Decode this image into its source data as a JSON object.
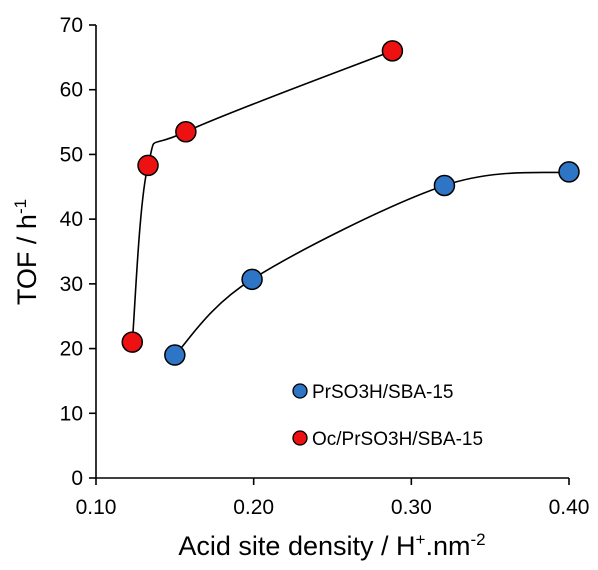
{
  "chart_data": {
    "type": "scatter",
    "xlabel": {
      "main": "Acid site density / H",
      "sup1": "+",
      "mid": ".nm",
      "sup2": "-2"
    },
    "ylabel": {
      "main": "TOF / h",
      "sup": "-1"
    },
    "xlim": [
      0.1,
      0.4
    ],
    "ylim": [
      0,
      70
    ],
    "xticks": [
      0.1,
      0.2,
      0.3,
      0.4
    ],
    "xtick_labels": [
      "0.10",
      "0.20",
      "0.30",
      "0.40"
    ],
    "yticks": [
      0,
      10,
      20,
      30,
      40,
      50,
      60,
      70
    ],
    "ytick_labels": [
      "0",
      "10",
      "20",
      "30",
      "40",
      "50",
      "60",
      "70"
    ],
    "grid": false,
    "legend_position": "bottom-right",
    "series": [
      {
        "name": "PrSO3H/SBA-15",
        "color": "#2E75C5",
        "trendline": "smooth curve",
        "points": [
          {
            "x": 0.15,
            "y": 19.0
          },
          {
            "x": 0.199,
            "y": 30.7
          },
          {
            "x": 0.321,
            "y": 45.2
          },
          {
            "x": 0.4,
            "y": 47.3
          }
        ]
      },
      {
        "name": "Oc/PrSO3H/SBA-15",
        "color": "#EE1111",
        "trendline": "smooth curve",
        "points": [
          {
            "x": 0.123,
            "y": 21.0
          },
          {
            "x": 0.133,
            "y": 48.3
          },
          {
            "x": 0.157,
            "y": 53.5
          },
          {
            "x": 0.288,
            "y": 66.0
          }
        ]
      }
    ]
  }
}
